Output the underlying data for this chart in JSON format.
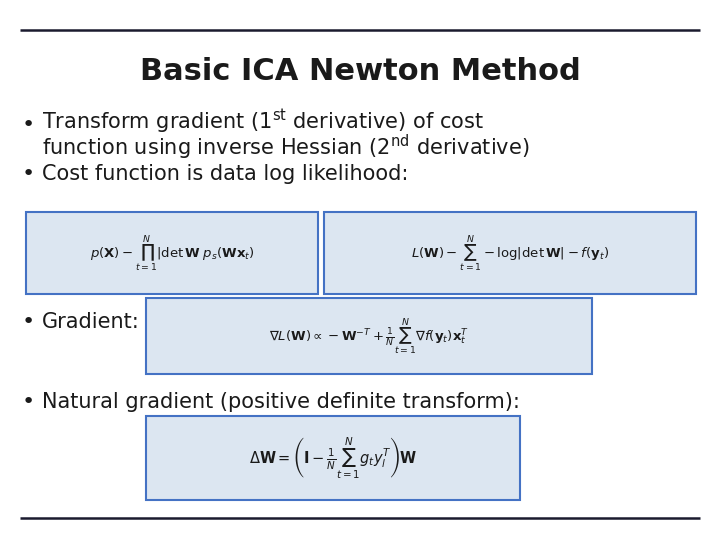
{
  "title": "Basic ICA Newton Method",
  "background_color": "#ffffff",
  "title_fontsize": 22,
  "bullet_fontsize": 15,
  "equation_box_color": "#dce6f1",
  "equation_box_edge": "#4472c4",
  "line_color": "#1a1a2e",
  "text_color": "#1a1a1a",
  "eq1": "$p(\\mathbf{X}) - \\prod_{t=1}^{N} |\\det\\mathbf{W}\\; p_s(\\mathbf{W}\\mathbf{x}_t)$",
  "eq2": "$L(\\mathbf{W}) - \\sum_{t=1}^{N} -\\log|\\det\\mathbf{W}| - f(\\mathbf{y}_t)$",
  "eq3": "$\\nabla L(\\mathbf{W}) \\propto -\\mathbf{W}^{-T} + \\frac{1}{N}\\sum_{t=1}^{N} \\nabla f(\\mathbf{y}_t)\\mathbf{x}_t^T$",
  "eq4": "$\\Delta\\mathbf{W} = \\left(\\mathbf{I} - \\frac{1}{N}\\sum_{t=1}^{N} g_t y_l^T\\right)\\mathbf{W}$"
}
